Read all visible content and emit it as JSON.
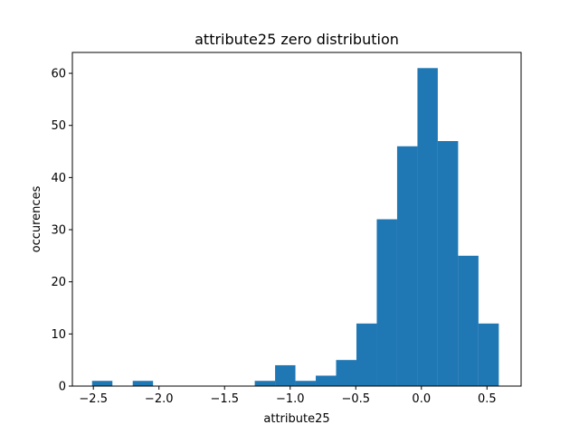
{
  "chart_data": {
    "type": "bar",
    "title": "attribute25 zero distribution",
    "xlabel": "attribute25",
    "ylabel": "occurences",
    "xlim": [
      -2.66,
      0.76
    ],
    "ylim": [
      0,
      64
    ],
    "x_ticks": [
      -2.5,
      -2.0,
      -1.5,
      -1.0,
      -0.5,
      0.0,
      0.5
    ],
    "x_tick_labels": [
      "−2.5",
      "−2.0",
      "−1.5",
      "−1.0",
      "−0.5",
      "0.0",
      "0.5"
    ],
    "y_ticks": [
      0,
      10,
      20,
      30,
      40,
      50,
      60
    ],
    "y_tick_labels": [
      "0",
      "10",
      "20",
      "30",
      "40",
      "50",
      "60"
    ],
    "bins": [
      {
        "x0": -2.51,
        "x1": -2.355,
        "value": 1
      },
      {
        "x0": -2.355,
        "x1": -2.2,
        "value": 0
      },
      {
        "x0": -2.2,
        "x1": -2.045,
        "value": 1
      },
      {
        "x0": -2.045,
        "x1": -1.89,
        "value": 0
      },
      {
        "x0": -1.89,
        "x1": -1.735,
        "value": 0
      },
      {
        "x0": -1.735,
        "x1": -1.58,
        "value": 0
      },
      {
        "x0": -1.58,
        "x1": -1.425,
        "value": 0
      },
      {
        "x0": -1.425,
        "x1": -1.27,
        "value": 0
      },
      {
        "x0": -1.27,
        "x1": -1.115,
        "value": 1
      },
      {
        "x0": -1.115,
        "x1": -0.96,
        "value": 4
      },
      {
        "x0": -0.96,
        "x1": -0.805,
        "value": 1
      },
      {
        "x0": -0.805,
        "x1": -0.65,
        "value": 2
      },
      {
        "x0": -0.65,
        "x1": -0.495,
        "value": 5
      },
      {
        "x0": -0.495,
        "x1": -0.34,
        "value": 12
      },
      {
        "x0": -0.34,
        "x1": -0.185,
        "value": 32
      },
      {
        "x0": -0.185,
        "x1": -0.03,
        "value": 46
      },
      {
        "x0": -0.03,
        "x1": 0.125,
        "value": 61
      },
      {
        "x0": 0.125,
        "x1": 0.28,
        "value": 47
      },
      {
        "x0": 0.28,
        "x1": 0.435,
        "value": 25
      },
      {
        "x0": 0.435,
        "x1": 0.59,
        "value": 12
      }
    ],
    "bar_color": "#1f77b4",
    "grid": false,
    "legend": "none"
  }
}
